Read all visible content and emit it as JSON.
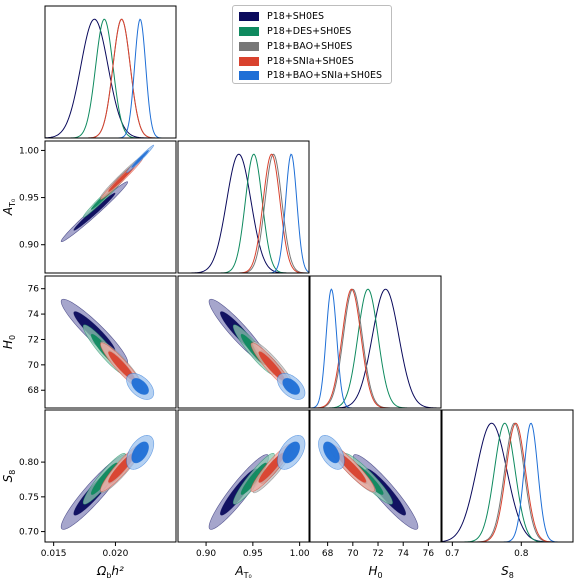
{
  "chart_data": {
    "type": "triangle_corner_plot",
    "parameters": [
      {
        "key": "ob",
        "label_main": "Ω",
        "label_sub": "b",
        "label_tail": "h²",
        "range": [
          0.0143,
          0.0249
        ],
        "ticks": [
          0.015,
          0.02
        ],
        "tick_labels": [
          "0.015",
          "0.020"
        ]
      },
      {
        "key": "at",
        "label_main": "A",
        "label_sub": "T₀",
        "label_tail": "",
        "range": [
          0.87,
          1.01
        ],
        "ticks": [
          0.9,
          0.95,
          1.0
        ],
        "tick_labels": [
          "0.90",
          "0.95",
          "1.00"
        ]
      },
      {
        "key": "h0",
        "label_main": "H",
        "label_sub": "0",
        "label_tail": "",
        "range": [
          66.6,
          77.0
        ],
        "ticks": [
          68,
          70,
          72,
          74,
          76
        ],
        "tick_labels": [
          "68",
          "70",
          "72",
          "74",
          "76"
        ]
      },
      {
        "key": "s8",
        "label_main": "S",
        "label_sub": "8",
        "label_tail": "",
        "range": [
          0.685,
          0.875
        ],
        "ticks": [
          0.7,
          0.75,
          0.8
        ],
        "tick_labels": [
          "0.70",
          "0.75",
          "0.80"
        ]
      }
    ],
    "s8_bottom_tick_labels": [
      "0.7",
      "0.8"
    ],
    "s8_bottom_ticks": [
      0.7,
      0.8
    ],
    "series": [
      {
        "name": "P18+SH0ES",
        "color": "#0a0a5c",
        "fill_outer": "#8888bb",
        "fill_inner": "#0a0a5c",
        "mean": {
          "ob": 0.0183,
          "at": 0.935,
          "h0": 72.6,
          "s8": 0.757
        },
        "sd": {
          "ob": 0.0011,
          "at": 0.013,
          "h0": 1.05,
          "s8": 0.022
        },
        "rho": {
          "ob_at": 0.985,
          "ob_h0": -0.93,
          "ob_s8": 0.93,
          "at_h0": -0.93,
          "at_s8": 0.93,
          "h0_s8": -0.93
        }
      },
      {
        "name": "P18+DES+SH0ES",
        "color": "#0f8a5f",
        "fill_outer": "#8fcab2",
        "fill_inner": "#0f8a5f",
        "mean": {
          "ob": 0.0191,
          "at": 0.951,
          "h0": 71.2,
          "s8": 0.776
        },
        "sd": {
          "ob": 0.0007,
          "at": 0.009,
          "h0": 0.8,
          "s8": 0.015
        },
        "rho": {
          "ob_at": 0.985,
          "ob_h0": -0.93,
          "ob_s8": 0.93,
          "at_h0": -0.93,
          "at_s8": 0.93,
          "h0_s8": -0.93
        }
      },
      {
        "name": "P18+BAO+SH0ES",
        "color": "#777777",
        "fill_outer": "#bdbdbd",
        "fill_inner": "#777777",
        "mean": {
          "ob": 0.0205,
          "at": 0.972,
          "h0": 70.0,
          "s8": 0.79
        },
        "sd": {
          "ob": 0.0007,
          "at": 0.009,
          "h0": 0.75,
          "s8": 0.014
        },
        "rho": {
          "ob_at": 0.985,
          "ob_h0": -0.93,
          "ob_s8": 0.93,
          "at_h0": -0.93,
          "at_s8": 0.93,
          "h0_s8": -0.93
        }
      },
      {
        "name": "P18+SNIa+SH0ES",
        "color": "#d9422e",
        "fill_outer": "#f0a9a0",
        "fill_inner": "#d9422e",
        "mean": {
          "ob": 0.0205,
          "at": 0.97,
          "h0": 69.9,
          "s8": 0.792
        },
        "sd": {
          "ob": 0.0007,
          "at": 0.009,
          "h0": 0.75,
          "s8": 0.014
        },
        "rho": {
          "ob_at": 0.985,
          "ob_h0": -0.93,
          "ob_s8": 0.93,
          "at_h0": -0.93,
          "at_s8": 0.93,
          "h0_s8": -0.93
        }
      },
      {
        "name": "P18+BAO+SNIa+SH0ES",
        "color": "#1f6fd6",
        "fill_outer": "#9cc2ee",
        "fill_inner": "#1f6fd6",
        "mean": {
          "ob": 0.022,
          "at": 0.991,
          "h0": 68.3,
          "s8": 0.814
        },
        "sd": {
          "ob": 0.00045,
          "at": 0.006,
          "h0": 0.42,
          "s8": 0.01
        },
        "rho": {
          "ob_at": 0.985,
          "ob_h0": -0.5,
          "ob_s8": 0.5,
          "at_h0": -0.5,
          "at_s8": 0.5,
          "h0_s8": -0.5
        }
      }
    ],
    "legend_position": "top-right",
    "grid": false
  }
}
